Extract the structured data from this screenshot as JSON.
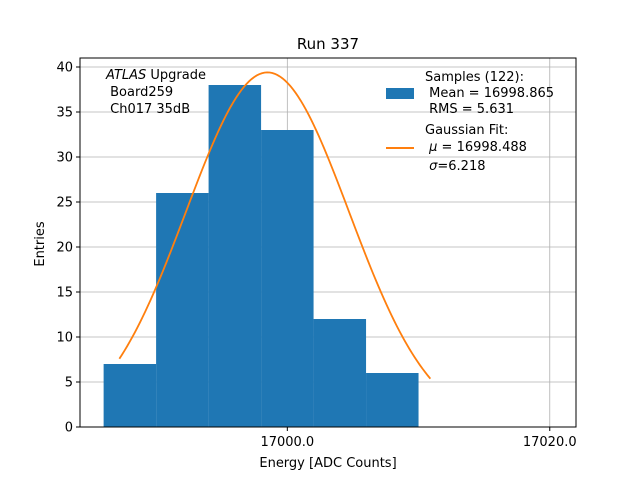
{
  "chart_data": {
    "type": "bar",
    "title": "Run 337",
    "xlabel": "Energy [ADC Counts]",
    "ylabel": "Entries",
    "xlim": [
      16984.2,
      17022.0
    ],
    "ylim": [
      0,
      41
    ],
    "xticks": [
      17000.0,
      17020.0
    ],
    "xtick_labels": [
      "17000.0",
      "17020.0"
    ],
    "yticks": [
      0,
      5,
      10,
      15,
      20,
      25,
      30,
      35,
      40
    ],
    "grid": true,
    "bin_edges": [
      16986,
      16990,
      16994,
      16998,
      17002,
      17006,
      17010,
      17014,
      17018
    ],
    "values": [
      7,
      26,
      38,
      33,
      12,
      6,
      0,
      0
    ],
    "bar_color": "#1f77b4",
    "fit_color": "#ff7f0e",
    "series": [
      {
        "name": "Samples (122):",
        "type": "histogram"
      },
      {
        "name": "Gaussian Fit:",
        "type": "line",
        "mu": 16998.488,
        "sigma": 6.218,
        "peak": 39.4,
        "x_range": [
          16987.2,
          17010.9
        ]
      }
    ],
    "annotation": {
      "lines": [
        "ATLAS Upgrade",
        " Board259",
        " Ch017 35dB"
      ],
      "italic_word": "ATLAS",
      "plain_rest": " Upgrade"
    },
    "legend": {
      "position": "top-right",
      "samples_header": "Samples (122):",
      "samples_mean": " Mean = 16998.865",
      "samples_rms": " RMS = 5.631",
      "fit_header": "Gaussian Fit:",
      "fit_mu_symbol": "μ",
      "fit_mu_value": " = 16998.488",
      "fit_sigma_symbol": "σ",
      "fit_sigma_value": "=6.218"
    }
  }
}
